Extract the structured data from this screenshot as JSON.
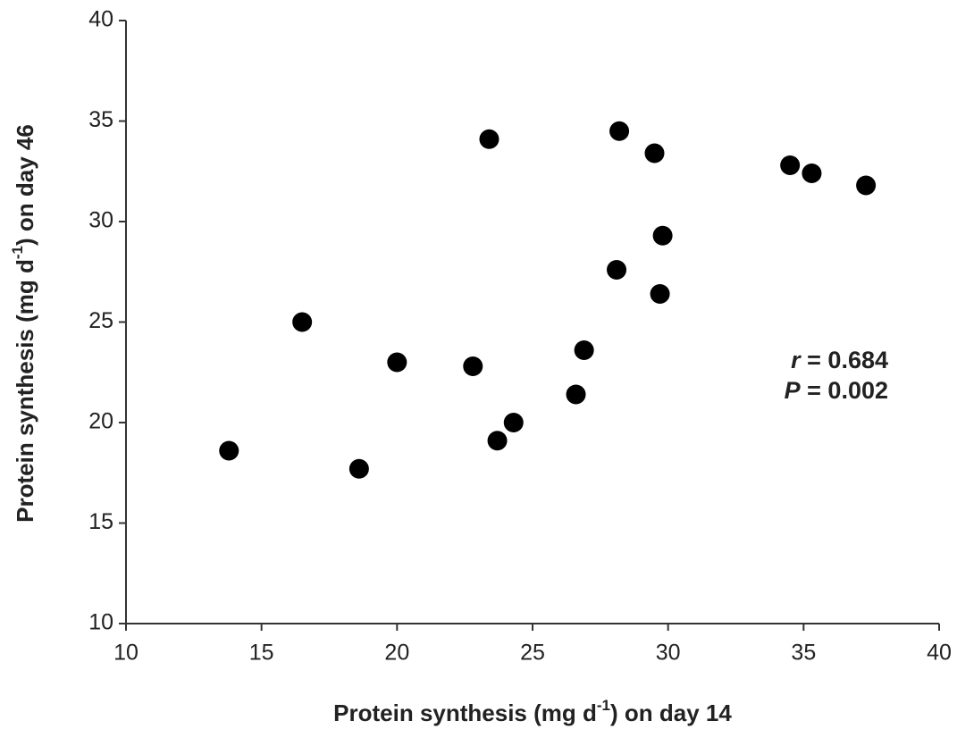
{
  "chart_data": {
    "type": "scatter",
    "xlabel": [
      "Protein synthesis (mg d",
      "-1",
      ") on day 14"
    ],
    "ylabel": [
      "Protein synthesis (mg d",
      "-1",
      ") on day 46"
    ],
    "annotations": [
      {
        "symbol": "r",
        "text": " = 0.684"
      },
      {
        "symbol": "P",
        "text": " = 0.002"
      }
    ],
    "color": "#000000",
    "x": [
      13.8,
      16.5,
      18.6,
      20.0,
      22.8,
      23.4,
      23.7,
      24.3,
      26.6,
      26.9,
      28.1,
      28.2,
      29.5,
      29.7,
      29.8,
      34.5,
      35.3,
      37.3
    ],
    "y": [
      18.6,
      25.0,
      17.7,
      23.0,
      22.8,
      34.1,
      19.1,
      20.0,
      21.4,
      23.6,
      27.6,
      34.5,
      33.4,
      26.4,
      29.3,
      32.8,
      32.4,
      31.8
    ],
    "xlim": [
      10,
      40
    ],
    "ylim": [
      10,
      40
    ],
    "xticks": [
      10,
      15,
      20,
      25,
      30,
      35,
      40
    ],
    "yticks": [
      10,
      15,
      20,
      25,
      30,
      35,
      40
    ],
    "grid": false
  }
}
